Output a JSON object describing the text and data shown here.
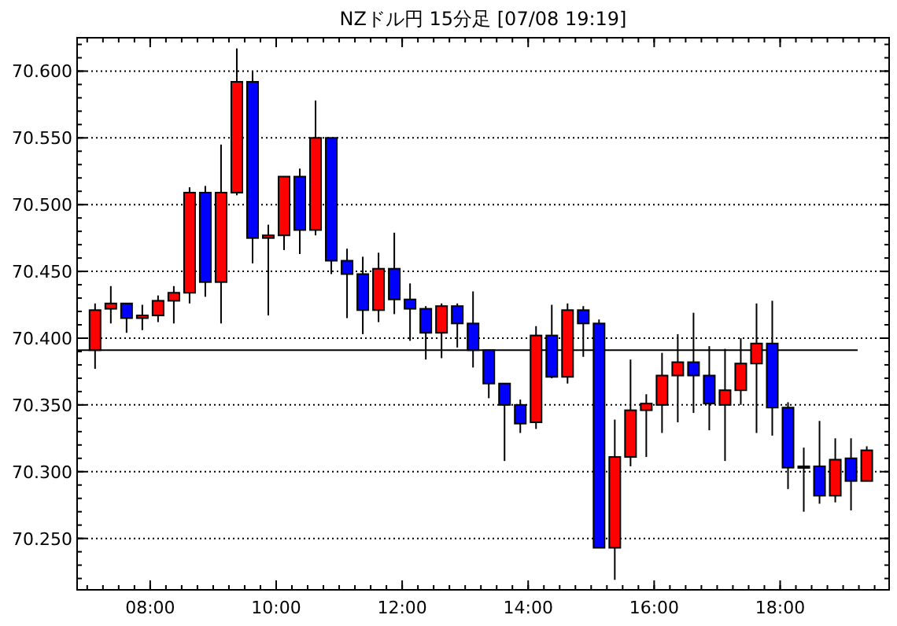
{
  "chart_data": {
    "type": "candlestick",
    "title": "NZドル円 15分足 [07/08 19:19]",
    "x": [
      7.125,
      7.375,
      7.625,
      7.875,
      8.125,
      8.375,
      8.625,
      8.875,
      9.125,
      9.375,
      9.625,
      9.875,
      10.125,
      10.375,
      10.625,
      10.875,
      11.125,
      11.375,
      11.625,
      11.875,
      12.125,
      12.375,
      12.625,
      12.875,
      13.125,
      13.375,
      13.625,
      13.875,
      14.125,
      14.375,
      14.625,
      14.875,
      15.125,
      15.375,
      15.625,
      15.875,
      16.125,
      16.375,
      16.625,
      16.875,
      17.125,
      17.375,
      17.625,
      17.875,
      18.125,
      18.375,
      18.625,
      18.875,
      19.125,
      19.375
    ],
    "ohlc": [
      [
        70.391,
        70.426,
        70.377,
        70.421
      ],
      [
        70.422,
        70.439,
        70.411,
        70.426
      ],
      [
        70.426,
        70.426,
        70.404,
        70.415
      ],
      [
        70.415,
        70.425,
        70.406,
        70.417
      ],
      [
        70.417,
        70.432,
        70.412,
        70.428
      ],
      [
        70.428,
        70.439,
        70.411,
        70.434
      ],
      [
        70.434,
        70.513,
        70.426,
        70.509
      ],
      [
        70.509,
        70.514,
        70.431,
        70.442
      ],
      [
        70.442,
        70.545,
        70.411,
        70.509
      ],
      [
        70.509,
        70.617,
        70.507,
        70.592
      ],
      [
        70.592,
        70.6,
        70.456,
        70.475
      ],
      [
        70.475,
        70.485,
        70.417,
        70.477
      ],
      [
        70.477,
        70.521,
        70.466,
        70.521
      ],
      [
        70.521,
        70.527,
        70.463,
        70.481
      ],
      [
        70.481,
        70.578,
        70.477,
        70.55
      ],
      [
        70.55,
        70.55,
        70.448,
        70.458
      ],
      [
        70.458,
        70.467,
        70.415,
        70.448
      ],
      [
        70.448,
        70.461,
        70.403,
        70.421
      ],
      [
        70.421,
        70.464,
        70.412,
        70.452
      ],
      [
        70.452,
        70.479,
        70.418,
        70.429
      ],
      [
        70.429,
        70.441,
        70.398,
        70.422
      ],
      [
        70.422,
        70.424,
        70.384,
        70.404
      ],
      [
        70.404,
        70.426,
        70.385,
        70.424
      ],
      [
        70.424,
        70.426,
        70.393,
        70.411
      ],
      [
        70.411,
        70.435,
        70.378,
        70.391
      ],
      [
        70.391,
        70.391,
        70.355,
        70.366
      ],
      [
        70.366,
        70.366,
        70.308,
        70.35
      ],
      [
        70.35,
        70.354,
        70.329,
        70.336
      ],
      [
        70.337,
        70.409,
        70.332,
        70.402
      ],
      [
        70.402,
        70.425,
        70.37,
        70.371
      ],
      [
        70.371,
        70.426,
        70.366,
        70.421
      ],
      [
        70.421,
        70.424,
        70.386,
        70.411
      ],
      [
        70.411,
        70.414,
        70.243,
        70.243
      ],
      [
        70.243,
        70.339,
        70.219,
        70.311
      ],
      [
        70.311,
        70.384,
        70.304,
        70.346
      ],
      [
        70.346,
        70.358,
        70.311,
        70.351
      ],
      [
        70.35,
        70.389,
        70.329,
        70.372
      ],
      [
        70.372,
        70.403,
        70.337,
        70.382
      ],
      [
        70.382,
        70.419,
        70.344,
        70.372
      ],
      [
        70.372,
        70.394,
        70.331,
        70.351
      ],
      [
        70.35,
        70.392,
        70.308,
        70.361
      ],
      [
        70.361,
        70.4,
        70.35,
        70.381
      ],
      [
        70.381,
        70.426,
        70.329,
        70.396
      ],
      [
        70.396,
        70.428,
        70.327,
        70.348
      ],
      [
        70.348,
        70.352,
        70.287,
        70.303
      ],
      [
        70.304,
        70.318,
        70.27,
        70.304
      ],
      [
        70.304,
        70.338,
        70.276,
        70.282
      ],
      [
        70.282,
        70.325,
        70.277,
        70.309
      ],
      [
        70.31,
        70.325,
        70.271,
        70.293
      ],
      [
        70.293,
        70.319,
        70.293,
        70.316
      ]
    ],
    "colors": [
      "#ff0000",
      "#ff0000",
      "#0000ff",
      "#ff0000",
      "#ff0000",
      "#ff0000",
      "#ff0000",
      "#0000ff",
      "#ff0000",
      "#ff0000",
      "#0000ff",
      "#ff0000",
      "#ff0000",
      "#0000ff",
      "#ff0000",
      "#0000ff",
      "#0000ff",
      "#0000ff",
      "#ff0000",
      "#0000ff",
      "#0000ff",
      "#0000ff",
      "#ff0000",
      "#0000ff",
      "#0000ff",
      "#0000ff",
      "#0000ff",
      "#0000ff",
      "#ff0000",
      "#0000ff",
      "#ff0000",
      "#0000ff",
      "#0000ff",
      "#ff0000",
      "#ff0000",
      "#ff0000",
      "#ff0000",
      "#ff0000",
      "#0000ff",
      "#0000ff",
      "#ff0000",
      "#ff0000",
      "#ff0000",
      "#0000ff",
      "#0000ff",
      "#000000",
      "#0000ff",
      "#ff0000",
      "#0000ff",
      "#ff0000"
    ],
    "xlim": [
      6.84,
      19.73
    ],
    "xticks": [
      {
        "value": 8,
        "label": "08:00"
      },
      {
        "value": 10,
        "label": "10:00"
      },
      {
        "value": 12,
        "label": "12:00"
      },
      {
        "value": 14,
        "label": "14:00"
      },
      {
        "value": 16,
        "label": "16:00"
      },
      {
        "value": 18,
        "label": "18:00"
      }
    ],
    "ylim": [
      70.2115,
      70.625
    ],
    "yticks": [
      {
        "value": 70.25,
        "label": "70.250"
      },
      {
        "value": 70.3,
        "label": "70.300"
      },
      {
        "value": 70.35,
        "label": "70.350"
      },
      {
        "value": 70.4,
        "label": "70.400"
      },
      {
        "value": 70.45,
        "label": "70.450"
      },
      {
        "value": 70.5,
        "label": "70.500"
      },
      {
        "value": 70.55,
        "label": "70.550"
      },
      {
        "value": 70.6,
        "label": "70.600"
      }
    ],
    "grid": "y",
    "ref_lines": [
      {
        "axis": "y",
        "value": 70.391,
        "color": "#000000"
      }
    ]
  }
}
